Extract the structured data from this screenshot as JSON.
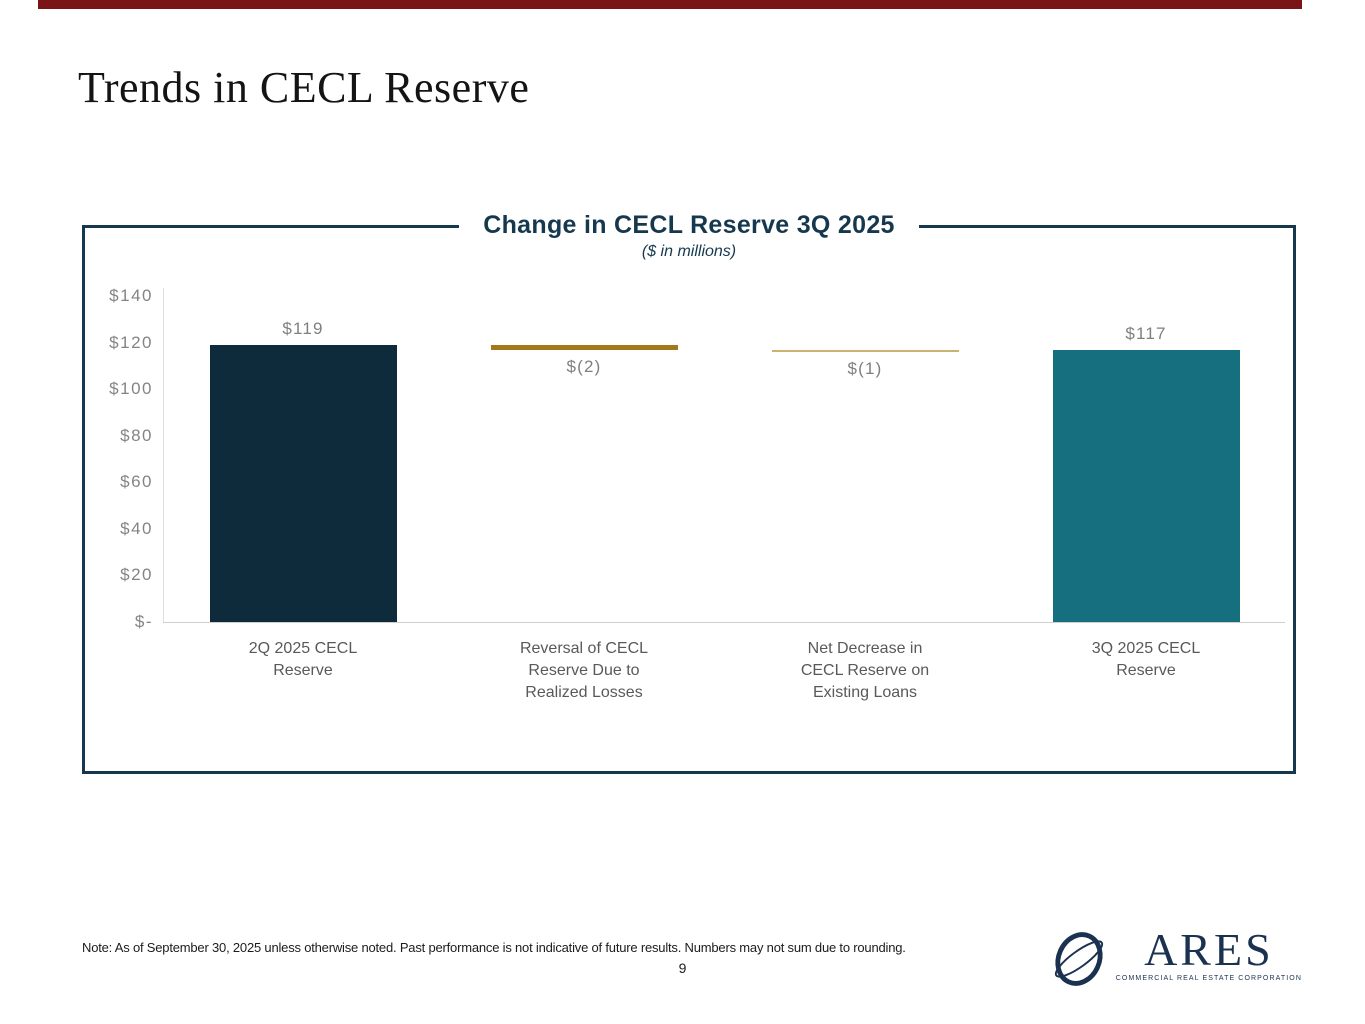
{
  "slide": {
    "title": "Trends in CECL Reserve",
    "note": "Note: As of September 30, 2025 unless otherwise noted. Past performance is not indicative of future results. Numbers may not sum due to rounding.",
    "page_number": "9"
  },
  "logo": {
    "wordmark": "ARES",
    "subtext": "COMMERCIAL REAL ESTATE CORPORATION",
    "globe_icon": "tilted-globe-orbit-icon",
    "color": "#1B3150"
  },
  "colors": {
    "accent_red": "#7B1416",
    "navy_border": "#16384E",
    "bar_navy": "#0E2B3C",
    "bar_teal": "#156F7E",
    "gold": "#A3781A",
    "light_gold": "#CBB172",
    "axis_label_gray": "#848484",
    "value_label_gray": "#7F7F7F",
    "category_gray": "#58595B"
  },
  "chart_data": {
    "type": "bar",
    "variant": "waterfall",
    "title": "Change in CECL Reserve 3Q 2025",
    "subtitle": "($ in millions)",
    "categories": [
      "2Q 2025 CECL\nReserve",
      "Reversal of CECL\nReserve Due to\nRealized Losses",
      "Net Decrease in\nCECL Reserve on\nExisting Loans",
      "3Q 2025 CECL\nReserve"
    ],
    "values": [
      119,
      -2,
      -1,
      117
    ],
    "bar_types": [
      "total",
      "decrease",
      "decrease",
      "total"
    ],
    "value_labels": [
      "$119",
      "$(2)",
      "$(1)",
      "$117"
    ],
    "bar_colors": [
      "#0E2B3C",
      "#A3781A",
      "#CBB172",
      "#156F7E"
    ],
    "y_ticks": [
      {
        "label": "$140",
        "value": 140
      },
      {
        "label": "$120",
        "value": 120
      },
      {
        "label": "$100",
        "value": 100
      },
      {
        "label": "$80",
        "value": 80
      },
      {
        "label": "$60",
        "value": 60
      },
      {
        "label": "$40",
        "value": 40
      },
      {
        "label": "$20",
        "value": 20
      },
      {
        "label": "$-",
        "value": 0
      }
    ],
    "ylim": [
      0,
      140
    ],
    "xlabel": "",
    "ylabel": "",
    "grid": "off",
    "legend": "none"
  }
}
